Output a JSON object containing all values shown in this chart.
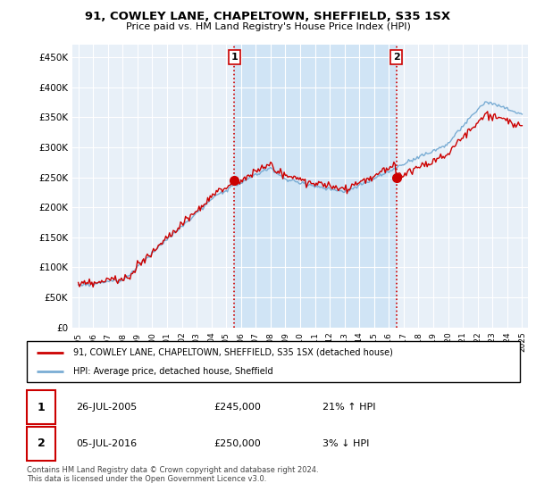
{
  "title": "91, COWLEY LANE, CHAPELTOWN, SHEFFIELD, S35 1SX",
  "subtitle": "Price paid vs. HM Land Registry's House Price Index (HPI)",
  "hpi_color": "#7aadd4",
  "price_color": "#cc0000",
  "vline_color": "#cc0000",
  "background_chart": "#e8f0f8",
  "background_between": "#d0e4f5",
  "legend_line1": "91, COWLEY LANE, CHAPELTOWN, SHEFFIELD, S35 1SX (detached house)",
  "legend_line2": "HPI: Average price, detached house, Sheffield",
  "event1_date": "26-JUL-2005",
  "event1_price": "£245,000",
  "event1_pct": "21% ↑ HPI",
  "event2_date": "05-JUL-2016",
  "event2_price": "£250,000",
  "event2_pct": "3% ↓ HPI",
  "footer": "Contains HM Land Registry data © Crown copyright and database right 2024.\nThis data is licensed under the Open Government Licence v3.0.",
  "ylim": [
    0,
    470000
  ],
  "yticks": [
    0,
    50000,
    100000,
    150000,
    200000,
    250000,
    300000,
    350000,
    400000,
    450000
  ],
  "event1_x": 2005.55,
  "event1_y": 245000,
  "event2_x": 2016.51,
  "event2_y": 250000,
  "xmin": 1994.6,
  "xmax": 2025.4
}
